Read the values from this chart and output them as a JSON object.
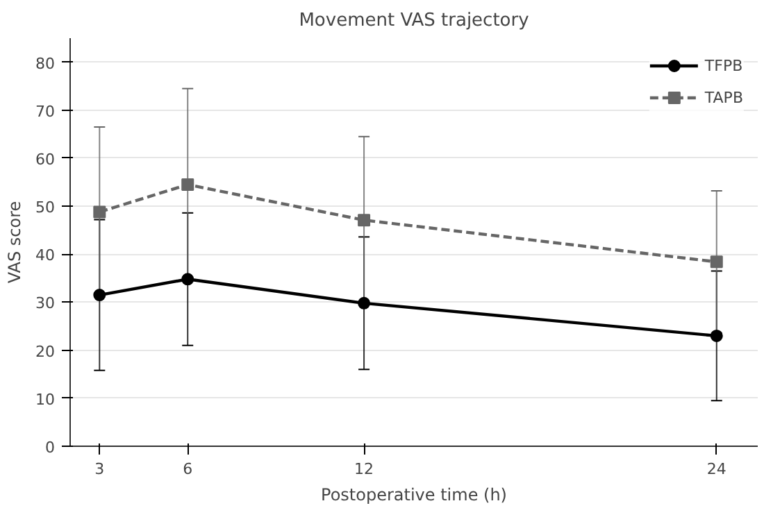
{
  "chart_data": {
    "type": "line",
    "title": "Movement VAS trajectory",
    "xlabel": "Postoperative time (h)",
    "ylabel": "VAS score",
    "x": [
      3,
      6,
      12,
      24
    ],
    "series": [
      {
        "name": "TFPB",
        "color": "#000000",
        "values": [
          31.5,
          34.8,
          29.8,
          23.0
        ],
        "errors": [
          15.7,
          13.8,
          13.8,
          13.5
        ],
        "marker": "circle",
        "line_style": "solid"
      },
      {
        "name": "TAPB",
        "color": "#666666",
        "values": [
          48.8,
          54.5,
          47.1,
          38.4
        ],
        "errors": [
          17.7,
          20.0,
          17.4,
          14.8
        ],
        "marker": "square",
        "line_style": "dashed"
      }
    ],
    "xlim": [
      2,
      25.4
    ],
    "ylim": [
      0,
      85
    ],
    "xticks": [
      3,
      6,
      12,
      24
    ],
    "yticks": [
      0,
      10,
      20,
      30,
      40,
      50,
      60,
      70,
      80
    ],
    "grid": "y",
    "legend": "top right"
  }
}
